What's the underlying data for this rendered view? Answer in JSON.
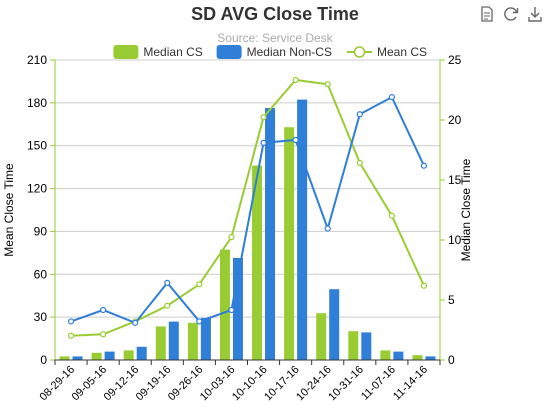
{
  "chart_data": {
    "type": "bar",
    "title": "SD AVG Close Time",
    "subtitle": "Source: Service Desk",
    "categories": [
      "08-29-16",
      "09-05-16",
      "09-12-16",
      "09-19-16",
      "09-26-16",
      "10-03-16",
      "10-10-16",
      "10-17-16",
      "10-24-16",
      "10-31-16",
      "11-07-16",
      "11-14-16"
    ],
    "ylabel_left": "Mean Close Time",
    "ylabel_right": "Median Close Time",
    "left_axis": {
      "min": 0,
      "max": 210,
      "ticks": [
        0,
        30,
        60,
        90,
        120,
        150,
        180,
        210
      ]
    },
    "right_axis": {
      "min": 0,
      "max": 25,
      "ticks": [
        0,
        5,
        10,
        15,
        20,
        25
      ]
    },
    "grid": true,
    "legend_position": "top",
    "series": [
      {
        "name": "Median CS",
        "kind": "bar",
        "axis": "right",
        "color": "#99cc33",
        "values": [
          0.3,
          0.6,
          0.8,
          2.8,
          3.1,
          9.2,
          16.2,
          19.4,
          3.9,
          2.4,
          0.8,
          0.4
        ]
      },
      {
        "name": "Median Non-CS",
        "kind": "bar",
        "axis": "right",
        "color": "#2f7ed8",
        "values": [
          0.3,
          0.7,
          1.1,
          3.2,
          3.5,
          8.5,
          21.0,
          21.7,
          5.9,
          2.3,
          0.7,
          0.3
        ]
      },
      {
        "name": "Mean CS",
        "kind": "line",
        "axis": "left",
        "color": "#99cc33",
        "marker": "hollow-circle",
        "values": [
          17,
          18,
          27,
          38,
          53,
          86,
          170,
          196,
          193,
          138,
          101,
          52
        ]
      },
      {
        "name": "",
        "kind": "line",
        "axis": "left",
        "color": "#2f7ed8",
        "marker": "hollow-circle",
        "values": [
          27,
          35,
          26,
          54,
          27,
          35,
          152,
          154,
          92,
          172,
          184,
          136
        ]
      }
    ]
  },
  "toolbox": {
    "icons": [
      "data-view-icon",
      "restore-icon",
      "save-image-icon"
    ]
  }
}
